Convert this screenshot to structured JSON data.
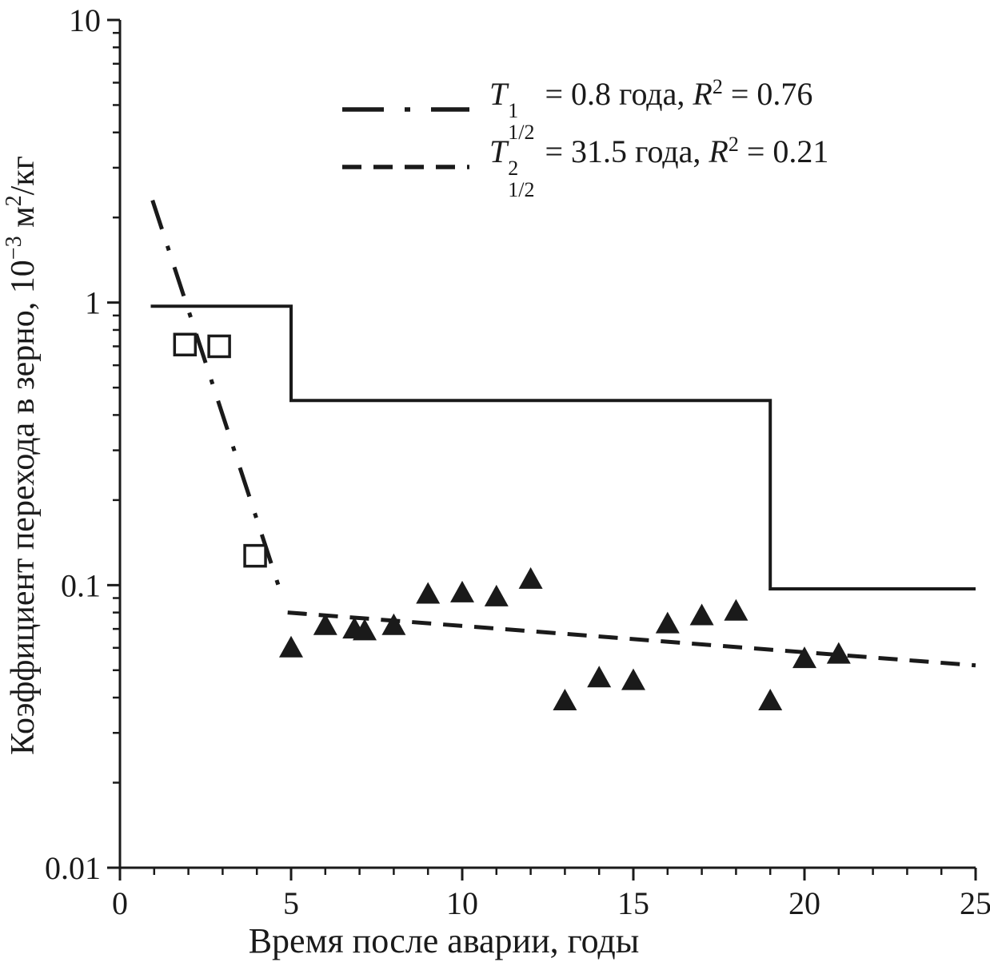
{
  "figure": {
    "background": "#ffffff",
    "ink_color": "#1a1a1a"
  },
  "chart_data": {
    "type": "scatter",
    "title": "",
    "xlabel": "Время после аварии, годы",
    "ylabel_parts": [
      {
        "text": "Коэффициент перехода в зерно, 10"
      },
      {
        "text": "−3",
        "sup": true
      },
      {
        "text": " м"
      },
      {
        "text": "2",
        "sup": true
      },
      {
        "text": "/кг"
      }
    ],
    "x_axis": {
      "min": 0,
      "max": 25,
      "scale": "linear",
      "major_ticks": [
        0,
        5,
        10,
        15,
        20,
        25
      ],
      "minor_tick_step": 1
    },
    "y_axis": {
      "min": 0.01,
      "max": 10,
      "scale": "log",
      "major_ticks": [
        10,
        1,
        0.1,
        0.01
      ],
      "major_tick_labels": [
        "10",
        "1",
        "0.1",
        "0.01"
      ]
    },
    "grid": false,
    "legend_position": "upper-center",
    "series": [
      {
        "name": "step-reference-line",
        "kind": "line",
        "style": "solid",
        "points": [
          [
            0.9,
            0.97
          ],
          [
            5,
            0.97
          ],
          [
            5,
            0.45
          ],
          [
            19,
            0.45
          ],
          [
            19,
            0.097
          ],
          [
            25,
            0.097
          ]
        ]
      },
      {
        "name": "fit-line-T1-dashdot",
        "kind": "line",
        "style": "dashdot",
        "half_life_years": 0.8,
        "r_squared": 0.76,
        "points": [
          [
            0.95,
            2.3
          ],
          [
            4.75,
            0.09
          ]
        ]
      },
      {
        "name": "fit-line-T2-dashed",
        "kind": "line",
        "style": "dashed",
        "half_life_years": 31.5,
        "r_squared": 0.21,
        "points": [
          [
            4.9,
            0.08
          ],
          [
            25,
            0.052
          ]
        ]
      },
      {
        "name": "open-square-points",
        "kind": "scatter",
        "marker": "open-square",
        "points": [
          [
            1.9,
            0.71
          ],
          [
            2.9,
            0.7
          ],
          [
            3.95,
            0.127
          ]
        ]
      },
      {
        "name": "filled-triangle-points",
        "kind": "scatter",
        "marker": "filled-triangle",
        "points": [
          [
            5,
            0.06
          ],
          [
            6,
            0.072
          ],
          [
            6.85,
            0.07
          ],
          [
            7.15,
            0.069
          ],
          [
            8,
            0.072
          ],
          [
            9,
            0.093
          ],
          [
            10,
            0.094
          ],
          [
            11,
            0.091
          ],
          [
            12,
            0.105
          ],
          [
            13,
            0.039
          ],
          [
            14,
            0.047
          ],
          [
            15,
            0.046
          ],
          [
            16,
            0.073
          ],
          [
            17,
            0.078
          ],
          [
            18,
            0.081
          ],
          [
            19,
            0.039
          ],
          [
            20,
            0.055
          ],
          [
            21,
            0.057
          ]
        ]
      }
    ]
  },
  "legend": {
    "entries": [
      {
        "line_style": "dashdot",
        "T": "T",
        "T_sup": "1",
        "T_sub": "1/2",
        "mid": " = 0.8 года, ",
        "R": "R",
        "R_sup": "2",
        "tail": " = 0.76"
      },
      {
        "line_style": "dashed",
        "T": "T",
        "T_sup": "2",
        "T_sub": "1/2",
        "mid": " = 31.5 года, ",
        "R": "R",
        "R_sup": "2",
        "tail": " = 0.21"
      }
    ]
  }
}
